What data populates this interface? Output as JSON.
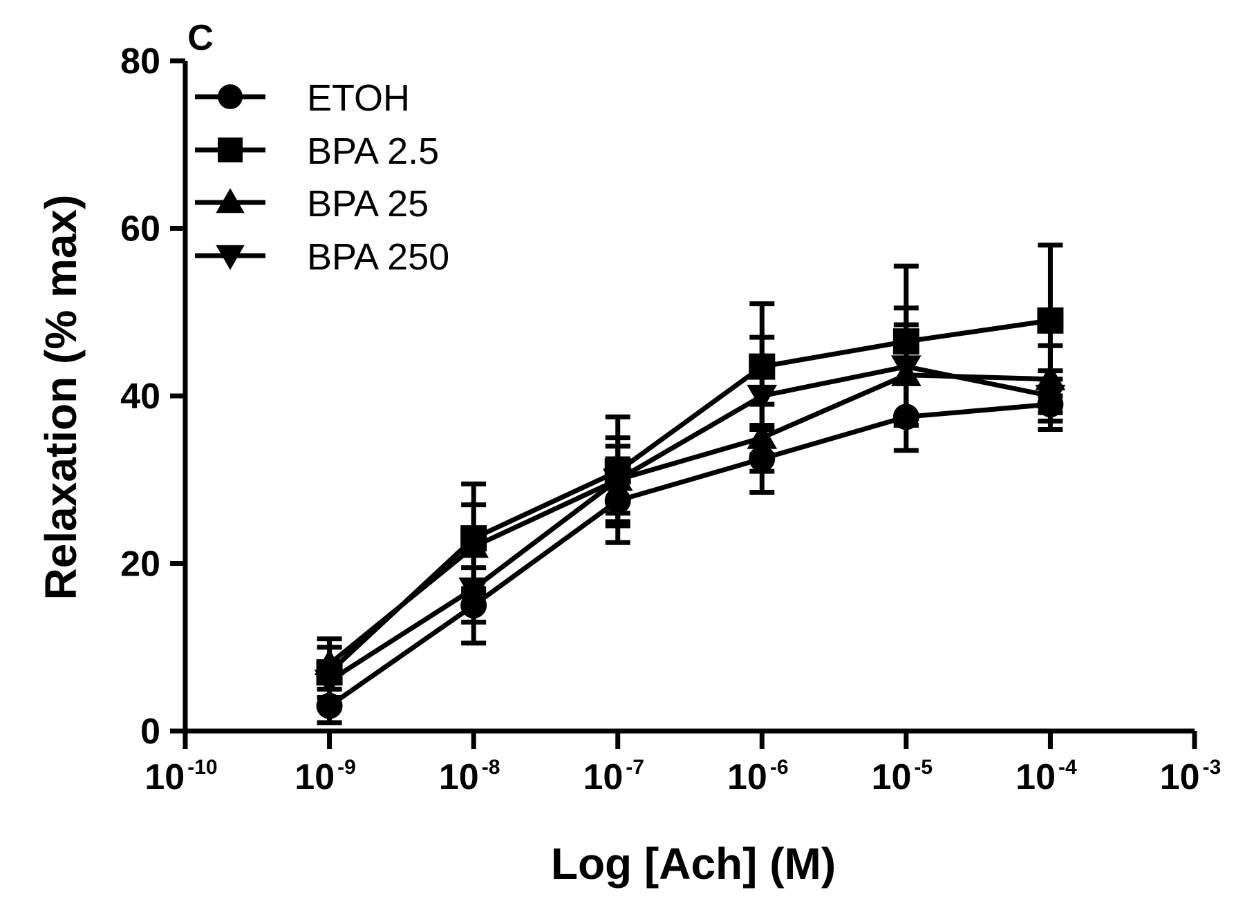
{
  "chart_data": {
    "type": "line",
    "panel_label": "C",
    "xlabel": "Log [Ach] (M)",
    "ylabel": "Relaxation (% max)",
    "x_scale": "log",
    "xlim": [
      1e-10,
      0.001
    ],
    "ylim": [
      0,
      80
    ],
    "x_ticks": [
      {
        "base": "10",
        "exp": "-10"
      },
      {
        "base": "10",
        "exp": "-9"
      },
      {
        "base": "10",
        "exp": "-8"
      },
      {
        "base": "10",
        "exp": "-7"
      },
      {
        "base": "10",
        "exp": "-6"
      },
      {
        "base": "10",
        "exp": "-5"
      },
      {
        "base": "10",
        "exp": "-4"
      },
      {
        "base": "10",
        "exp": "-3"
      }
    ],
    "y_ticks": [
      "0",
      "20",
      "40",
      "60",
      "80"
    ],
    "x": [
      1e-09,
      1e-08,
      1e-07,
      1e-06,
      1e-05,
      0.0001
    ],
    "grid": false,
    "legend_position": "top-left",
    "series": [
      {
        "name": "ETOH",
        "marker": "circle",
        "values": [
          3,
          15,
          27.5,
          32.5,
          37.5,
          39
        ],
        "errors": [
          2,
          4.5,
          5,
          4,
          4,
          3
        ]
      },
      {
        "name": "BPA 2.5",
        "marker": "square",
        "values": [
          7,
          23,
          31,
          43.5,
          46.5,
          49
        ],
        "errors": [
          4,
          6.5,
          6.5,
          7.5,
          9,
          9
        ]
      },
      {
        "name": "BPA 25",
        "marker": "triangle-up",
        "values": [
          8,
          22,
          30,
          35,
          42.5,
          42
        ],
        "errors": [
          2,
          5,
          4,
          4,
          6,
          4
        ]
      },
      {
        "name": "BPA 250",
        "marker": "triangle-down",
        "values": [
          6,
          17,
          30,
          40,
          43.5,
          40
        ],
        "errors": [
          2,
          4,
          5,
          7,
          7,
          3
        ]
      }
    ]
  }
}
